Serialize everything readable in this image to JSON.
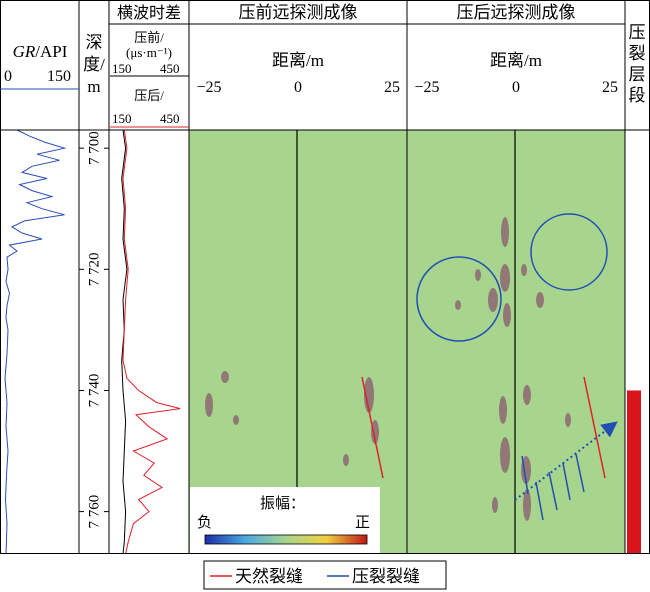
{
  "headers": {
    "gr_label_italic": "GR",
    "gr_label_unit": "/API",
    "gr_min": "0",
    "gr_max": "150",
    "depth_label_1": "深",
    "depth_label_2": "度/",
    "depth_label_3": "m",
    "shear_title": "横波时差",
    "pre_label_1": "压前/",
    "pre_label_2": "(μs·m⁻¹)",
    "pre_min": "150",
    "pre_max": "450",
    "post_label": "压后/",
    "post_min": "150",
    "post_max": "450",
    "pre_image_title": "压前远探测成像",
    "post_image_title": "压后远探测成像",
    "distance_label": "距离/m",
    "dist_ticks": [
      "−25",
      "0",
      "25"
    ],
    "frac_zone_1": "压",
    "frac_zone_2": "裂",
    "frac_zone_3": "层",
    "frac_zone_4": "段"
  },
  "colorbar": {
    "title": "振幅：",
    "neg_label": "负",
    "pos_label": "正"
  },
  "legend": {
    "natural": "天然裂缝",
    "fracture": "压裂裂缝"
  },
  "colors": {
    "gr_curve": "#2a4fb8",
    "pre_curve": "#000000",
    "post_curve": "#e0202a",
    "image_bg": "#a8d58e",
    "natural_fracture": "#e0202a",
    "fracture_line": "#1f4fb5",
    "frac_zone": "#d8151c"
  },
  "chart_data": {
    "type": "well-log",
    "depth_ticks": [
      "7 700",
      "7 720",
      "7 740",
      "7 760"
    ],
    "depth_values": [
      7700,
      7720,
      7740,
      7760
    ],
    "depth_range": [
      7697,
      7767
    ],
    "frac_zone_depth": [
      7740,
      7767
    ],
    "gr_range": [
      0,
      150
    ],
    "shear_range": [
      150,
      450
    ],
    "distance_range": [
      -25,
      25
    ],
    "gr_curve": {
      "depth": [
        7697,
        7698,
        7699,
        7700,
        7701,
        7702,
        7703,
        7704,
        7705,
        7706,
        7707,
        7708,
        7709,
        7710,
        7711,
        7712,
        7713,
        7714,
        7715,
        7716,
        7717,
        7718,
        7720,
        7722,
        7724,
        7726,
        7728,
        7730,
        7734,
        7738,
        7742,
        7746,
        7750,
        7754,
        7758,
        7762,
        7767
      ],
      "value": [
        30,
        55,
        85,
        125,
        70,
        115,
        60,
        40,
        90,
        35,
        60,
        100,
        50,
        80,
        125,
        45,
        20,
        40,
        80,
        15,
        30,
        10,
        12,
        8,
        15,
        10,
        8,
        12,
        10,
        6,
        10,
        8,
        12,
        9,
        7,
        10,
        8
      ]
    },
    "pre_shear": {
      "depth": [
        7697,
        7700,
        7705,
        7710,
        7715,
        7720,
        7725,
        7730,
        7735,
        7740,
        7745,
        7750,
        7755,
        7760,
        7765,
        7767
      ],
      "value": [
        200,
        210,
        195,
        205,
        200,
        215,
        200,
        205,
        195,
        200,
        210,
        205,
        200,
        210,
        205,
        200
      ]
    },
    "post_shear": {
      "depth": [
        7697,
        7700,
        7705,
        7710,
        7715,
        7720,
        7725,
        7730,
        7735,
        7738,
        7740,
        7742,
        7743,
        7744,
        7746,
        7748,
        7750,
        7752,
        7754,
        7756,
        7758,
        7760,
        7762,
        7765,
        7767
      ],
      "value": [
        205,
        215,
        200,
        210,
        205,
        220,
        210,
        205,
        200,
        215,
        260,
        330,
        420,
        250,
        300,
        370,
        240,
        320,
        280,
        350,
        260,
        300,
        240,
        220,
        210
      ]
    }
  }
}
